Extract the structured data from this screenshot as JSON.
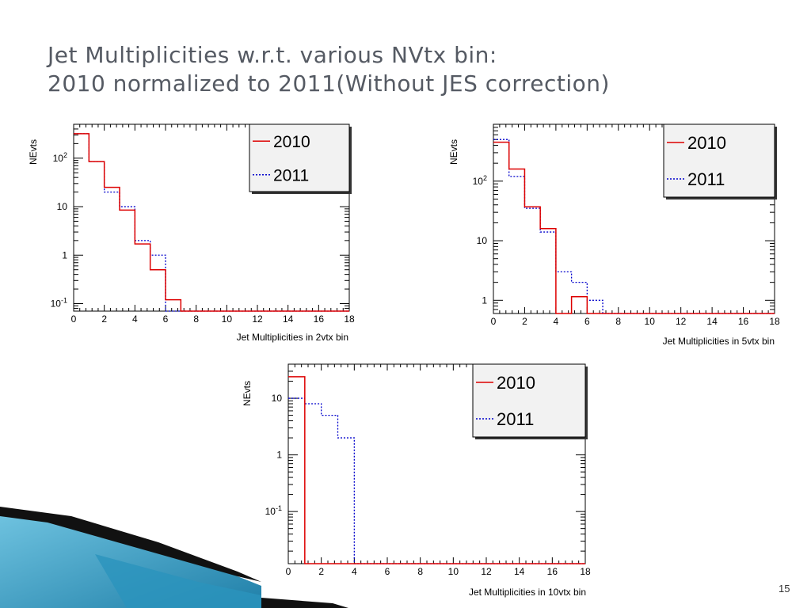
{
  "slide": {
    "title_line1": "Jet Multiplicities w.r.t. various NVtx bin:",
    "title_line2": "2010 normalized to 2011(Without JES correction)",
    "page_number": "15"
  },
  "colors": {
    "series_2010": "#dd0000",
    "series_2011": "#0000cc",
    "title": "#555a63"
  },
  "chart_data": [
    {
      "type": "histogram",
      "xlabel": "Jet Multiplicities in 2vtx bin",
      "ylabel": "NEvts",
      "xlim": [
        0,
        18
      ],
      "ylim": [
        0.07,
        500
      ],
      "log_y": true,
      "x_ticks": [
        "0",
        "2",
        "4",
        "6",
        "8",
        "10",
        "12",
        "14",
        "16",
        "18"
      ],
      "y_ticks": [
        {
          "v": 0.1,
          "b": "10",
          "e": "-1"
        },
        {
          "v": 1,
          "b": "1",
          "e": ""
        },
        {
          "v": 10,
          "b": "10",
          "e": ""
        },
        {
          "v": 100,
          "b": "10",
          "e": "2"
        }
      ],
      "legend_position": "top-right",
      "bin_edges": [
        0,
        1,
        2,
        3,
        4,
        5,
        6,
        7,
        8,
        9,
        10,
        11,
        12,
        13,
        14,
        15,
        16,
        17,
        18
      ],
      "series": [
        {
          "name": "2010",
          "style": "solid",
          "values": [
            320,
            85,
            25,
            8.5,
            1.7,
            0.5,
            0.12,
            0,
            0,
            0,
            0,
            0,
            0,
            0,
            0,
            0,
            0,
            0
          ]
        },
        {
          "name": "2011",
          "style": "dotted",
          "values": [
            320,
            85,
            20,
            10,
            2,
            1,
            0,
            0,
            0,
            0,
            0,
            0,
            0,
            0,
            0,
            0,
            0,
            0
          ]
        }
      ]
    },
    {
      "type": "histogram",
      "xlabel": "Jet Multiplicities in 5vtx bin",
      "ylabel": "NEvts",
      "xlim": [
        0,
        18
      ],
      "ylim": [
        0.6,
        900
      ],
      "log_y": true,
      "x_ticks": [
        "0",
        "2",
        "4",
        "6",
        "8",
        "10",
        "12",
        "14",
        "16",
        "18"
      ],
      "y_ticks": [
        {
          "v": 1,
          "b": "1",
          "e": ""
        },
        {
          "v": 10,
          "b": "10",
          "e": ""
        },
        {
          "v": 100,
          "b": "10",
          "e": "2"
        }
      ],
      "legend_position": "top-right",
      "bin_edges": [
        0,
        1,
        2,
        3,
        4,
        5,
        6,
        7,
        8,
        9,
        10,
        11,
        12,
        13,
        14,
        15,
        16,
        17,
        18
      ],
      "series": [
        {
          "name": "2010",
          "style": "solid",
          "values": [
            450,
            160,
            37,
            16,
            0,
            1.15,
            0,
            0,
            0,
            0,
            0,
            0,
            0,
            0,
            0,
            0,
            0,
            0
          ]
        },
        {
          "name": "2011",
          "style": "dotted",
          "values": [
            500,
            120,
            35,
            14,
            3,
            2,
            1,
            0,
            0,
            0,
            0,
            0,
            0,
            0,
            0,
            0,
            0,
            0
          ]
        }
      ]
    },
    {
      "type": "histogram",
      "xlabel": "Jet Multiplicities in 10vtx bin",
      "ylabel": "NEvts",
      "xlim": [
        0,
        18
      ],
      "ylim": [
        0.012,
        40
      ],
      "log_y": true,
      "x_ticks": [
        "0",
        "2",
        "4",
        "6",
        "8",
        "10",
        "12",
        "14",
        "16",
        "18"
      ],
      "y_ticks": [
        {
          "v": 0.1,
          "b": "10",
          "e": "-1"
        },
        {
          "v": 1,
          "b": "1",
          "e": ""
        },
        {
          "v": 10,
          "b": "10",
          "e": ""
        }
      ],
      "legend_position": "top-right",
      "bin_edges": [
        0,
        1,
        2,
        3,
        4,
        5,
        6,
        7,
        8,
        9,
        10,
        11,
        12,
        13,
        14,
        15,
        16,
        17,
        18
      ],
      "series": [
        {
          "name": "2010",
          "style": "solid",
          "values": [
            24,
            0,
            0,
            0,
            0,
            0,
            0,
            0,
            0,
            0,
            0,
            0,
            0,
            0,
            0,
            0,
            0,
            0
          ]
        },
        {
          "name": "2011",
          "style": "dotted",
          "values": [
            10,
            8,
            5,
            2,
            0,
            0,
            0,
            0,
            0,
            0,
            0,
            0,
            0,
            0,
            0,
            0,
            0,
            0
          ]
        }
      ]
    }
  ]
}
